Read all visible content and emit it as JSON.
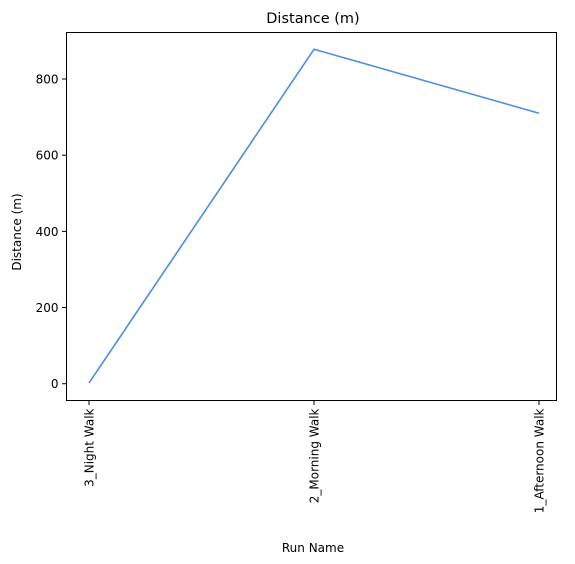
{
  "chart_data": {
    "type": "line",
    "title": "Distance (m)",
    "xlabel": "Run Name",
    "ylabel": "Distance (m)",
    "categories": [
      "3_Night Walk",
      "2_Morning Walk",
      "1_Afternoon Walk"
    ],
    "values": [
      2,
      878,
      710
    ],
    "ylim": [
      -44,
      922
    ],
    "yticks": [
      0,
      200,
      400,
      600,
      800
    ],
    "ytick_labels": [
      "0",
      "200",
      "400",
      "600",
      "800"
    ],
    "grid": false,
    "line_color": "#4a8fdc"
  }
}
